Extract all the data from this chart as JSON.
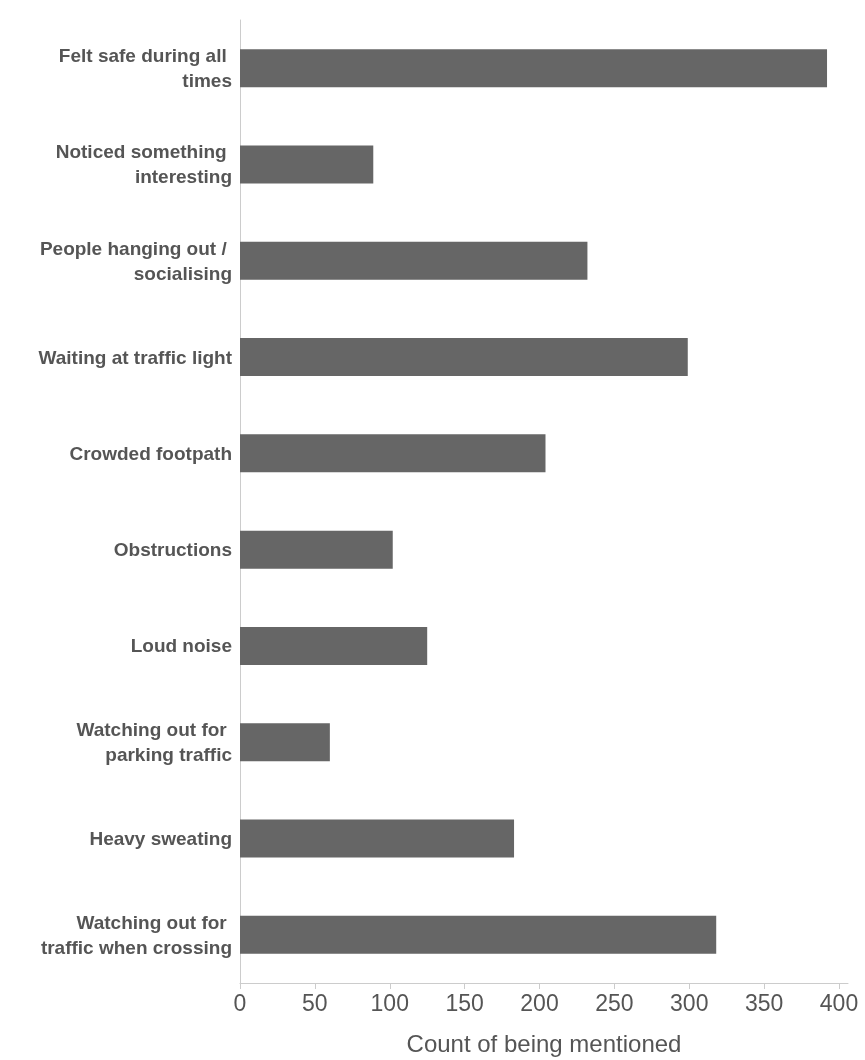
{
  "chart_data": {
    "type": "bar",
    "orientation": "horizontal",
    "xlabel": "Count of being mentioned",
    "categories": [
      "Felt safe during all times",
      "Noticed something interesting",
      "People hanging out / socialising",
      "Waiting at traffic light",
      "Crowded footpath",
      "Obstructions",
      "Loud noise",
      "Watching out for parking traffic",
      "Heavy sweating",
      "Watching out for traffic when crossing"
    ],
    "values": [
      392,
      89,
      232,
      299,
      204,
      102,
      125,
      60,
      183,
      318
    ],
    "color": "#666666",
    "xlim": [
      0,
      406
    ],
    "xticks": [
      0,
      50,
      100,
      150,
      200,
      250,
      300,
      350,
      400
    ],
    "grid": false
  }
}
